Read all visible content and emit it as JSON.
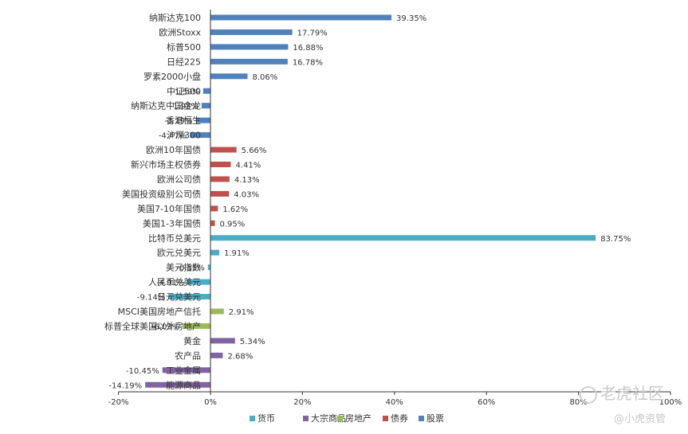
{
  "chart_data": {
    "type": "bar",
    "orientation": "horizontal",
    "xlim": [
      -20,
      100
    ],
    "x_ticks": [
      "-20%",
      "0%",
      "20%",
      "40%",
      "60%",
      "80%",
      "100%"
    ],
    "x_tick_values": [
      -20,
      0,
      20,
      40,
      60,
      80,
      100
    ],
    "grid": false,
    "legend_position": "bottom",
    "group_colors": {
      "货币": "#4bacc6",
      "大宗商品": "#8064a2",
      "房地产": "#9bbb59",
      "债券": "#c0504d",
      "股票": "#4f81bd"
    },
    "legend": [
      "货币",
      "大宗商品",
      "房地产",
      "债券",
      "股票"
    ],
    "categories": [
      "纳斯达克100",
      "欧洲Stoxx",
      "标普500",
      "日经225",
      "罗素2000小盘",
      "中证500",
      "纳斯达克中国金龙",
      "香港恒生",
      "沪深300",
      "欧洲10年国债",
      "新兴市场主权债券",
      "欧洲公司债",
      "美国投资级别公司债",
      "美国7-10年国债",
      "美国1-3年国债",
      "比特币兑美元",
      "欧元兑美元",
      "美元指数",
      "人民币兑美元",
      "日元兑美元",
      "MSCI美国房地产信托",
      "标普全球美国以外房地产",
      "黄金",
      "农产品",
      "工业金属",
      "能源商品"
    ],
    "values": [
      39.35,
      17.79,
      16.88,
      16.78,
      8.06,
      -1.59,
      -1.93,
      -3.19,
      -4.47,
      5.66,
      4.41,
      4.13,
      4.03,
      1.62,
      0.95,
      83.75,
      1.91,
      -0.55,
      -4.91,
      -9.14,
      2.91,
      -6.03,
      5.34,
      2.68,
      -10.45,
      -14.19
    ],
    "value_labels": [
      "39.35%",
      "17.79%",
      "16.88%",
      "16.78%",
      "8.06%",
      "-1.59%",
      "-1.93%",
      "-3.19%",
      "-4.47%",
      "5.66%",
      "4.41%",
      "4.13%",
      "4.03%",
      "1.62%",
      "0.95%",
      "83.75%",
      "1.91%",
      "-0.55%",
      "-4.91%",
      "-9.14%",
      "2.91%",
      "-6.03%",
      "5.34%",
      "2.68%",
      "-10.45%",
      "-14.19%"
    ],
    "groups": [
      "股票",
      "股票",
      "股票",
      "股票",
      "股票",
      "股票",
      "股票",
      "股票",
      "股票",
      "债券",
      "债券",
      "债券",
      "债券",
      "债券",
      "债券",
      "货币",
      "货币",
      "货币",
      "货币",
      "货币",
      "房地产",
      "房地产",
      "大宗商品",
      "大宗商品",
      "大宗商品",
      "大宗商品"
    ]
  },
  "watermark": {
    "brand": "老虎社区",
    "handle": "@小虎资管"
  }
}
